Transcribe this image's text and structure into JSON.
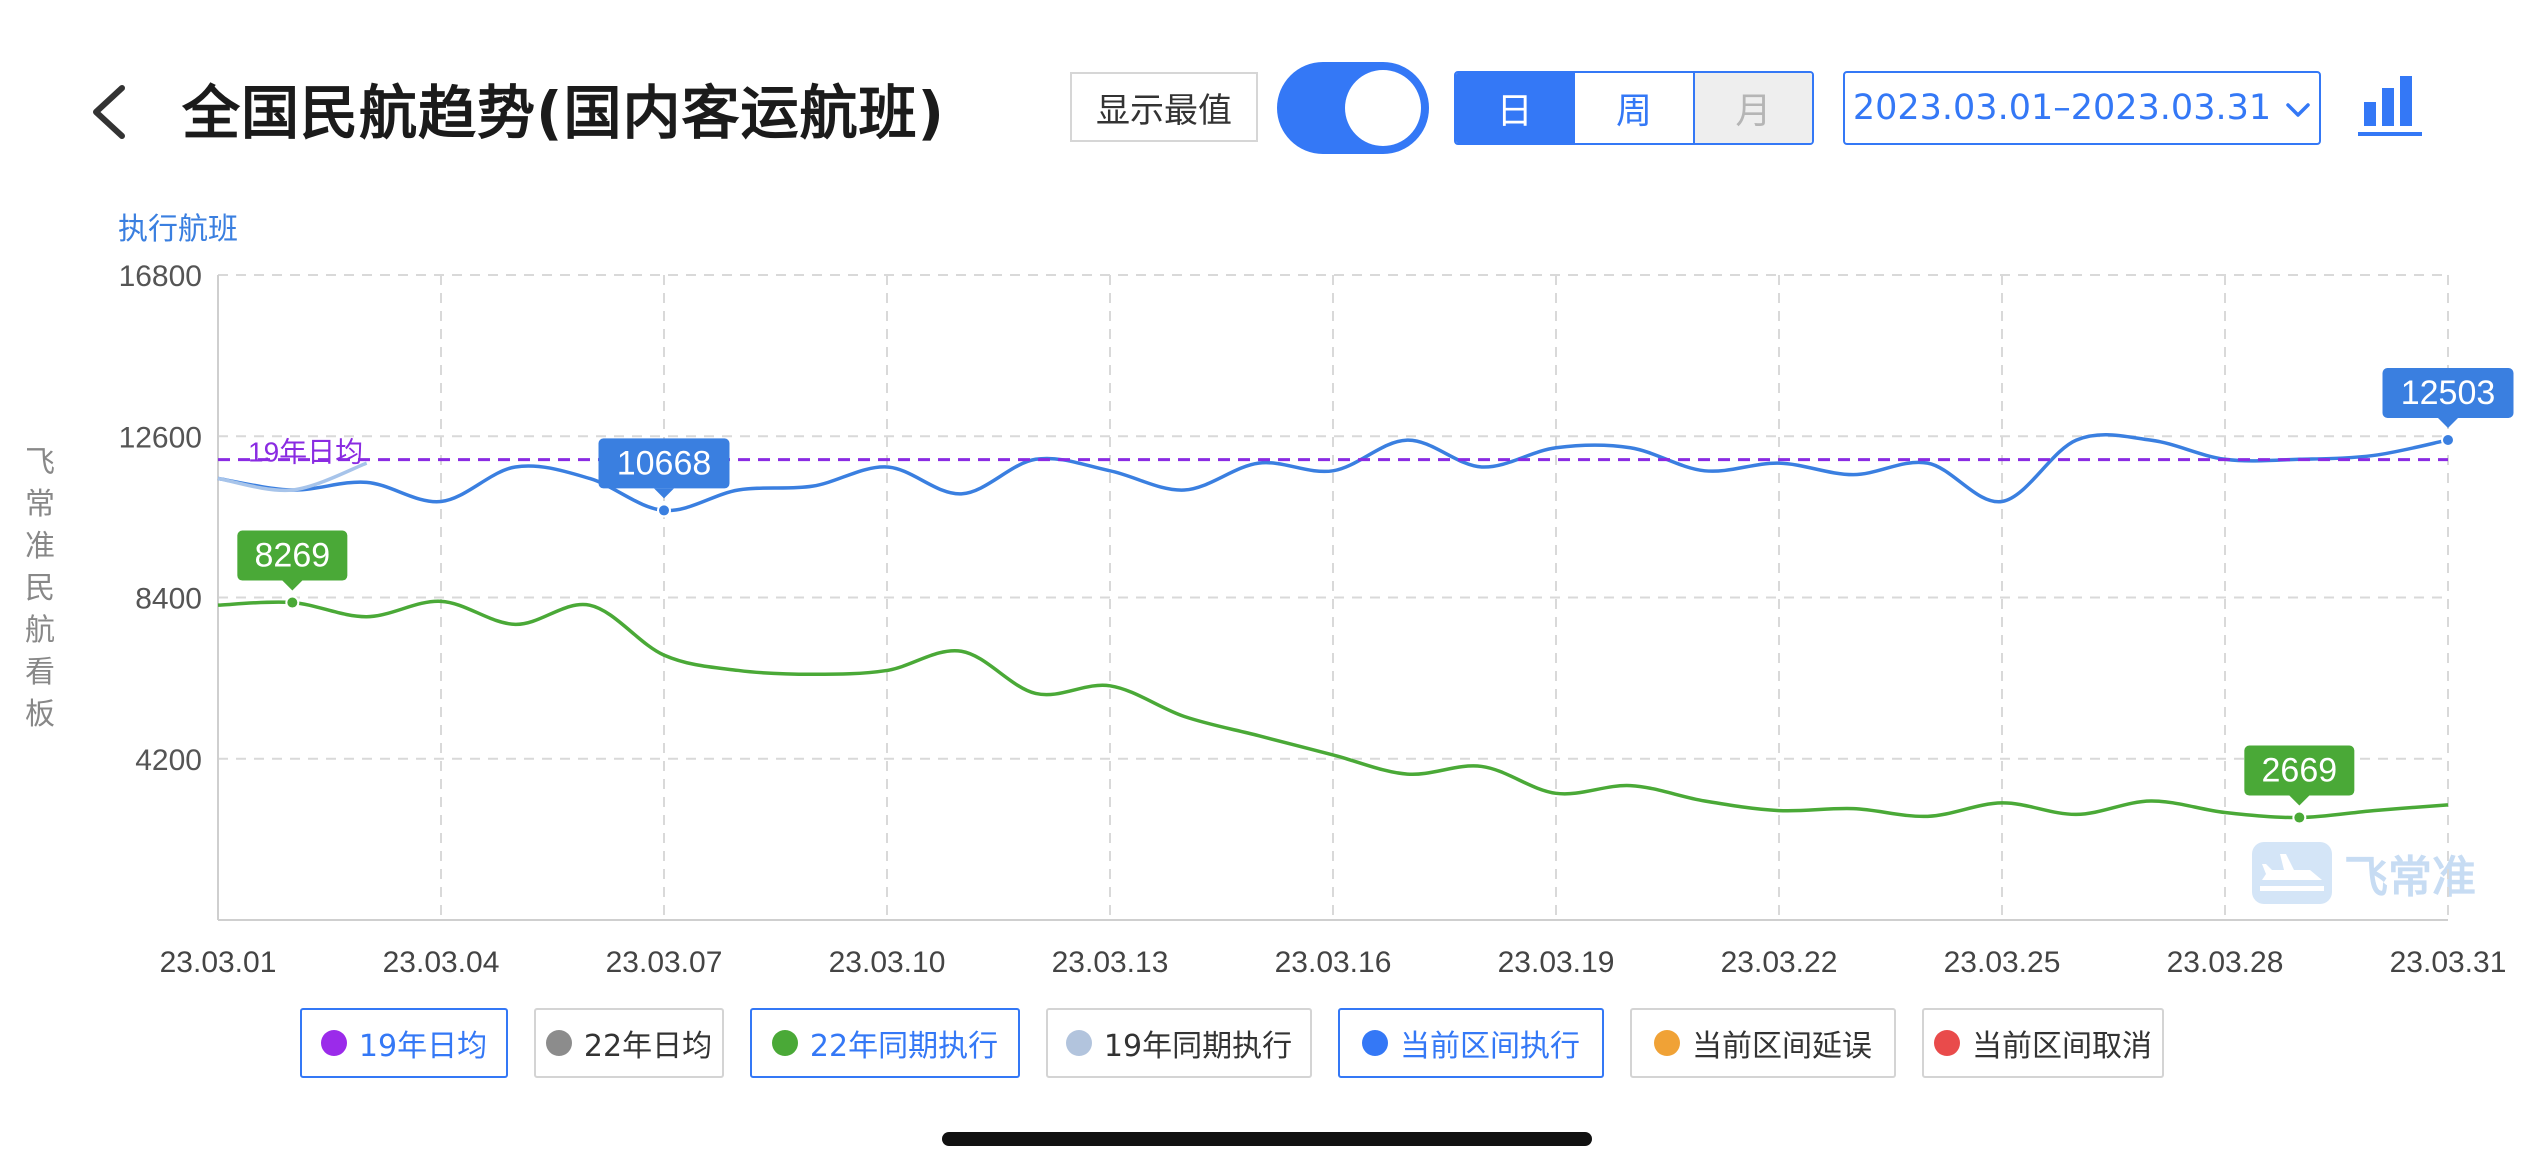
{
  "header": {
    "title": "全国民航趋势(国内客运航班)",
    "show_extremes_label": "显示最值",
    "toggle_on": true,
    "segments": [
      {
        "label": "日",
        "state": "active"
      },
      {
        "label": "周",
        "state": "normal"
      },
      {
        "label": "月",
        "state": "disabled"
      }
    ],
    "date_range": "2023.03.01–2023.03.31",
    "accent_color": "#3478f6"
  },
  "side_text": [
    "飞",
    "常",
    "准",
    "民",
    "航",
    "看",
    "板"
  ],
  "watermark": "飞常准",
  "chart_data": {
    "type": "line",
    "ylabel": "执行航班",
    "ylim": [
      0,
      16800
    ],
    "yticks": [
      4200,
      8400,
      12600,
      16800
    ],
    "xlim": [
      "23.03.01",
      "23.03.31"
    ],
    "xticks": [
      "23.03.01",
      "23.03.04",
      "23.03.07",
      "23.03.10",
      "23.03.13",
      "23.03.16",
      "23.03.19",
      "23.03.22",
      "23.03.25",
      "23.03.28",
      "23.03.31"
    ],
    "grid": true,
    "series": [
      {
        "name": "当前区间执行",
        "color": "#3a7fe0",
        "x": [
          "23.03.01",
          "23.03.02",
          "23.03.03",
          "23.03.04",
          "23.03.05",
          "23.03.06",
          "23.03.07",
          "23.03.08",
          "23.03.09",
          "23.03.10",
          "23.03.11",
          "23.03.12",
          "23.03.13",
          "23.03.14",
          "23.03.15",
          "23.03.16",
          "23.03.17",
          "23.03.18",
          "23.03.19",
          "23.03.20",
          "23.03.21",
          "23.03.22",
          "23.03.23",
          "23.03.24",
          "23.03.25",
          "23.03.26",
          "23.03.27",
          "23.03.28",
          "23.03.29",
          "23.03.30",
          "23.03.31"
        ],
        "values": [
          11500,
          11200,
          11400,
          10900,
          11800,
          11500,
          10668,
          11200,
          11300,
          11800,
          11100,
          12000,
          11700,
          11200,
          11900,
          11700,
          12500,
          11800,
          12300,
          12300,
          11700,
          11900,
          11600,
          11900,
          10900,
          12500,
          12500,
          12000,
          12000,
          12100,
          12503
        ]
      },
      {
        "name": "22年同期执行",
        "color": "#4aa937",
        "x": [
          "23.03.01",
          "23.03.02",
          "23.03.03",
          "23.03.04",
          "23.03.05",
          "23.03.06",
          "23.03.07",
          "23.03.08",
          "23.03.09",
          "23.03.10",
          "23.03.11",
          "23.03.12",
          "23.03.13",
          "23.03.14",
          "23.03.15",
          "23.03.16",
          "23.03.17",
          "23.03.18",
          "23.03.19",
          "23.03.20",
          "23.03.21",
          "23.03.22",
          "23.03.23",
          "23.03.24",
          "23.03.25",
          "23.03.26",
          "23.03.27",
          "23.03.28",
          "23.03.29",
          "23.03.30",
          "23.03.31"
        ],
        "values": [
          8200,
          8269,
          7900,
          8300,
          7700,
          8200,
          6900,
          6500,
          6400,
          6500,
          7000,
          5900,
          6100,
          5300,
          4800,
          4300,
          3800,
          4000,
          3300,
          3500,
          3100,
          2850,
          2900,
          2700,
          3050,
          2750,
          3100,
          2800,
          2669,
          2850,
          3000
        ]
      },
      {
        "name": "19年同期执行",
        "color": "#a7c4ea",
        "x": [
          "23.03.01",
          "23.03.02",
          "23.03.03"
        ],
        "values": [
          11500,
          11200,
          11900
        ]
      },
      {
        "name": "19年日均",
        "color": "#8a2be2",
        "style": "dashed",
        "x": [
          "23.03.01",
          "23.03.31"
        ],
        "values": [
          11990,
          11990
        ]
      }
    ],
    "reference_label": "19年日均",
    "annotations": [
      {
        "x": "23.03.07",
        "value": 10668,
        "label": "10668",
        "series": "当前区间执行",
        "color": "#3a7fe0"
      },
      {
        "x": "23.03.31",
        "value": 12503,
        "label": "12503",
        "series": "当前区间执行",
        "color": "#3a7fe0"
      },
      {
        "x": "23.03.02",
        "value": 8269,
        "label": "8269",
        "series": "22年同期执行",
        "color": "#4aa937"
      },
      {
        "x": "23.03.29",
        "value": 2669,
        "label": "2669",
        "series": "22年同期执行",
        "color": "#4aa937"
      }
    ],
    "legend": [
      {
        "label": "19年日均",
        "color": "#9b2bea",
        "active": true
      },
      {
        "label": "22年日均",
        "color": "#8c8c8c",
        "active": false
      },
      {
        "label": "22年同期执行",
        "color": "#4aa937",
        "active": true
      },
      {
        "label": "19年同期执行",
        "color": "#b2c4dd",
        "active": false
      },
      {
        "label": "当前区间执行",
        "color": "#3478f6",
        "active": true
      },
      {
        "label": "当前区间延误",
        "color": "#f0a236",
        "active": false
      },
      {
        "label": "当前区间取消",
        "color": "#e94b4b",
        "active": false
      }
    ]
  }
}
